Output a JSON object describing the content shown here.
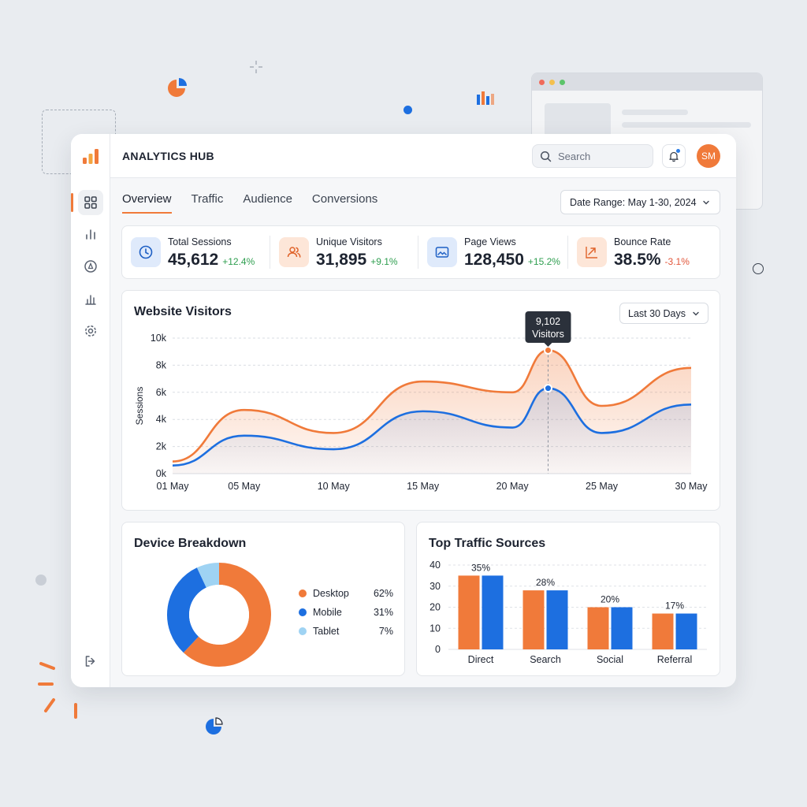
{
  "colors": {
    "accent": "#f07a3a",
    "blue": "#1d6fe0",
    "light_blue": "#9fd3f3",
    "positive": "#2e9e4f",
    "negative": "#e2563a"
  },
  "app": {
    "title": "ANALYTICS HUB"
  },
  "topbar": {
    "search_placeholder": "Search",
    "avatar_initials": "SM"
  },
  "tabs": [
    {
      "label": "Overview",
      "active": true
    },
    {
      "label": "Traffic",
      "active": false
    },
    {
      "label": "Audience",
      "active": false
    },
    {
      "label": "Conversions",
      "active": false
    }
  ],
  "date_range": {
    "label": "Date Range: May 1-30, 2024"
  },
  "kpis": [
    {
      "label": "Total Sessions",
      "value": "45,612",
      "change": "+12.4%",
      "icon": "clock-icon"
    },
    {
      "label": "Unique Visitors",
      "value": "31,895",
      "change": "+9.1%",
      "icon": "users-icon"
    },
    {
      "label": "Page Views",
      "value": "128,450",
      "change": "+15.2%",
      "icon": "image-icon"
    },
    {
      "label": "Bounce Rate",
      "value": "38.5%",
      "change": "-3.1%",
      "icon": "trend-arrow-icon"
    }
  ],
  "visitors_card": {
    "title": "Website Visitors",
    "filter": "Last 30 Days",
    "tooltip_value": "9,102",
    "tooltip_label": "Visitors"
  },
  "device_card": {
    "title": "Device Breakdown"
  },
  "sources_card": {
    "title": "Top Traffic Sources"
  },
  "chart_data": [
    {
      "type": "area",
      "title": "Website Visitors",
      "ylabel": "Sessions",
      "ylim": [
        0,
        10000
      ],
      "y_ticks": [
        "0k",
        "2k",
        "4k",
        "6k",
        "8k",
        "10k"
      ],
      "x_ticks": [
        "01 May",
        "05 May",
        "10 May",
        "15 May",
        "20 May",
        "25 May",
        "30 May"
      ],
      "x": [
        1,
        5,
        10,
        15,
        20,
        22,
        25,
        30
      ],
      "series": [
        {
          "values": [
            900,
            4700,
            3000,
            6800,
            6000,
            9102,
            5000,
            7800
          ]
        },
        {
          "values": [
            600,
            2800,
            1800,
            4600,
            3400,
            6300,
            3000,
            5100
          ]
        }
      ],
      "highlight": {
        "x": 22,
        "value": "9,102",
        "label": "Visitors"
      }
    },
    {
      "type": "pie",
      "title": "Device Breakdown",
      "slices": [
        {
          "label": "Desktop",
          "value": 62,
          "display": "62%"
        },
        {
          "label": "Mobile",
          "value": 31,
          "display": "31%"
        },
        {
          "label": "Tablet",
          "value": 7,
          "display": "7%"
        }
      ]
    },
    {
      "type": "bar",
      "title": "Top Traffic Sources",
      "categories": [
        "Direct",
        "Search",
        "Social",
        "Referral"
      ],
      "ylim": [
        0,
        40
      ],
      "y_ticks": [
        "0",
        "10",
        "20",
        "30",
        "40"
      ],
      "series": [
        {
          "values": [
            35,
            28,
            20,
            17
          ]
        },
        {
          "values": [
            35,
            28,
            20,
            17
          ]
        }
      ],
      "data_labels": [
        "35%",
        "28%",
        "20%",
        "17%"
      ]
    }
  ]
}
